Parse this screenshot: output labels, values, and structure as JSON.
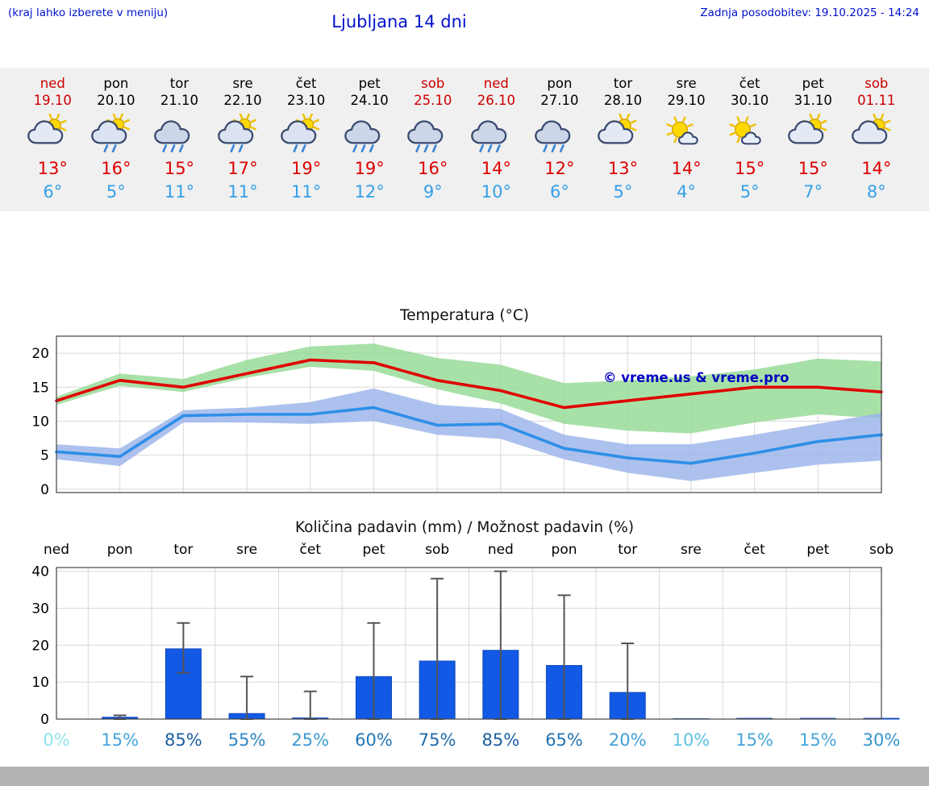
{
  "header": {
    "left_note": "(kraj lahko izberete v meniju)",
    "title": "Ljubljana 14 dni",
    "last_update": "Zadnja posodobitev: 19.10.2025 - 14:24"
  },
  "colors": {
    "header_blue": "#0012cc",
    "weekend_red": "#cc0000",
    "high_red": "#dd0000",
    "low_blue": "#35a0e8",
    "strip_bg": "#f0f0f0",
    "footer_gray": "#b2b2b2",
    "bar_blue": "#1259e6",
    "watermark_blue": "#0000c0"
  },
  "days": [
    {
      "name": "ned",
      "date": "19.10",
      "weekend": true,
      "icon": "partly-cloudy",
      "high": "13°",
      "low": "6°"
    },
    {
      "name": "pon",
      "date": "20.10",
      "weekend": false,
      "icon": "sun-rain",
      "high": "16°",
      "low": "5°"
    },
    {
      "name": "tor",
      "date": "21.10",
      "weekend": false,
      "icon": "rain",
      "high": "15°",
      "low": "11°"
    },
    {
      "name": "sre",
      "date": "22.10",
      "weekend": false,
      "icon": "sun-rain",
      "high": "17°",
      "low": "11°"
    },
    {
      "name": "čet",
      "date": "23.10",
      "weekend": false,
      "icon": "sun-rain",
      "high": "19°",
      "low": "11°"
    },
    {
      "name": "pet",
      "date": "24.10",
      "weekend": false,
      "icon": "rain",
      "high": "19°",
      "low": "12°"
    },
    {
      "name": "sob",
      "date": "25.10",
      "weekend": true,
      "icon": "rain",
      "high": "16°",
      "low": "9°"
    },
    {
      "name": "ned",
      "date": "26.10",
      "weekend": true,
      "icon": "rain",
      "high": "14°",
      "low": "10°"
    },
    {
      "name": "pon",
      "date": "27.10",
      "weekend": false,
      "icon": "rain",
      "high": "12°",
      "low": "6°"
    },
    {
      "name": "tor",
      "date": "28.10",
      "weekend": false,
      "icon": "partly-cloudy",
      "high": "13°",
      "low": "5°"
    },
    {
      "name": "sre",
      "date": "29.10",
      "weekend": false,
      "icon": "mostly-sunny",
      "high": "14°",
      "low": "4°"
    },
    {
      "name": "čet",
      "date": "30.10",
      "weekend": false,
      "icon": "mostly-sunny",
      "high": "15°",
      "low": "5°"
    },
    {
      "name": "pet",
      "date": "31.10",
      "weekend": false,
      "icon": "partly-cloudy",
      "high": "15°",
      "low": "7°"
    },
    {
      "name": "sob",
      "date": "01.11",
      "weekend": true,
      "icon": "partly-cloudy",
      "high": "14°",
      "low": "8°"
    }
  ],
  "chart_data": [
    {
      "type": "line",
      "title": "Temperatura (°C)",
      "watermark": "© vreme.us & vreme.pro",
      "x_labels": [
        "ned",
        "pon",
        "tor",
        "sre",
        "čet",
        "pet",
        "sob",
        "ned",
        "pon",
        "tor",
        "sre",
        "čet",
        "pet",
        "sob"
      ],
      "ylim": [
        -0.5,
        22.5
      ],
      "yticks": [
        0,
        5,
        10,
        15,
        20
      ],
      "grid": true,
      "legend": "none",
      "series": [
        {
          "name": "max-temp",
          "color": "#e00000",
          "values": [
            13,
            16,
            15,
            17,
            19,
            18.6,
            16,
            14.5,
            12,
            13,
            14,
            15,
            15,
            14.3
          ]
        },
        {
          "name": "min-temp",
          "color": "#2e8fe8",
          "values": [
            5.5,
            4.8,
            10.8,
            11,
            11,
            12,
            9.4,
            9.6,
            6,
            4.6,
            3.8,
            5.3,
            7,
            8
          ]
        }
      ],
      "bands": [
        {
          "name": "max-range",
          "color": "#92d992",
          "upper": [
            13.6,
            17,
            16.2,
            19,
            21,
            21.4,
            19.3,
            18.3,
            15.6,
            16,
            16.6,
            17.6,
            19.2,
            18.8
          ],
          "lower": [
            12.4,
            15.2,
            14.3,
            16.4,
            18,
            17.4,
            14.7,
            12.6,
            9.6,
            8.6,
            8.2,
            9.8,
            11,
            10.4
          ]
        },
        {
          "name": "min-range",
          "color": "#98b2ea",
          "upper": [
            6.6,
            6,
            11.6,
            12,
            12.8,
            14.8,
            12.4,
            11.8,
            8,
            6.6,
            6.6,
            8,
            9.6,
            11.2
          ],
          "lower": [
            4.4,
            3.4,
            9.8,
            9.8,
            9.6,
            10,
            8,
            7.4,
            4.4,
            2.4,
            1.2,
            2.4,
            3.6,
            4.2
          ]
        }
      ]
    },
    {
      "type": "bar",
      "title": "Količina padavin (mm) / Možnost padavin (%)",
      "x_labels": [
        "ned",
        "pon",
        "tor",
        "sre",
        "čet",
        "pet",
        "sob",
        "ned",
        "pon",
        "tor",
        "sre",
        "čet",
        "pet",
        "sob"
      ],
      "ylim": [
        0,
        41
      ],
      "yticks": [
        0,
        10,
        20,
        30,
        40
      ],
      "grid": true,
      "values": [
        0,
        0.5,
        19,
        1.5,
        0.3,
        11.5,
        15.7,
        18.6,
        14.5,
        7.2,
        0.1,
        0.2,
        0.2,
        0.2
      ],
      "whisker_low": [
        0,
        0,
        12.5,
        0,
        0,
        0,
        0,
        0,
        0,
        0,
        0,
        0,
        0,
        0
      ],
      "whisker_high": [
        0,
        1,
        26,
        11.5,
        7.5,
        26,
        38,
        40,
        33.5,
        20.5,
        0,
        0,
        0,
        0
      ],
      "percents": [
        0,
        15,
        85,
        55,
        25,
        60,
        75,
        85,
        65,
        20,
        10,
        15,
        15,
        30
      ],
      "percent_labels": [
        "0%",
        "15%",
        "85%",
        "55%",
        "25%",
        "60%",
        "75%",
        "85%",
        "65%",
        "20%",
        "10%",
        "15%",
        "15%",
        "30%"
      ],
      "percent_colors": [
        "#8fe5ea",
        "#47a5da",
        "#1a5fa0",
        "#2e86c4",
        "#3d9bd2",
        "#2277b6",
        "#1d6aaa",
        "#1a5fa0",
        "#2173b2",
        "#42a0d6",
        "#5ec1e4",
        "#47a5da",
        "#47a5da",
        "#3494ca"
      ]
    }
  ]
}
